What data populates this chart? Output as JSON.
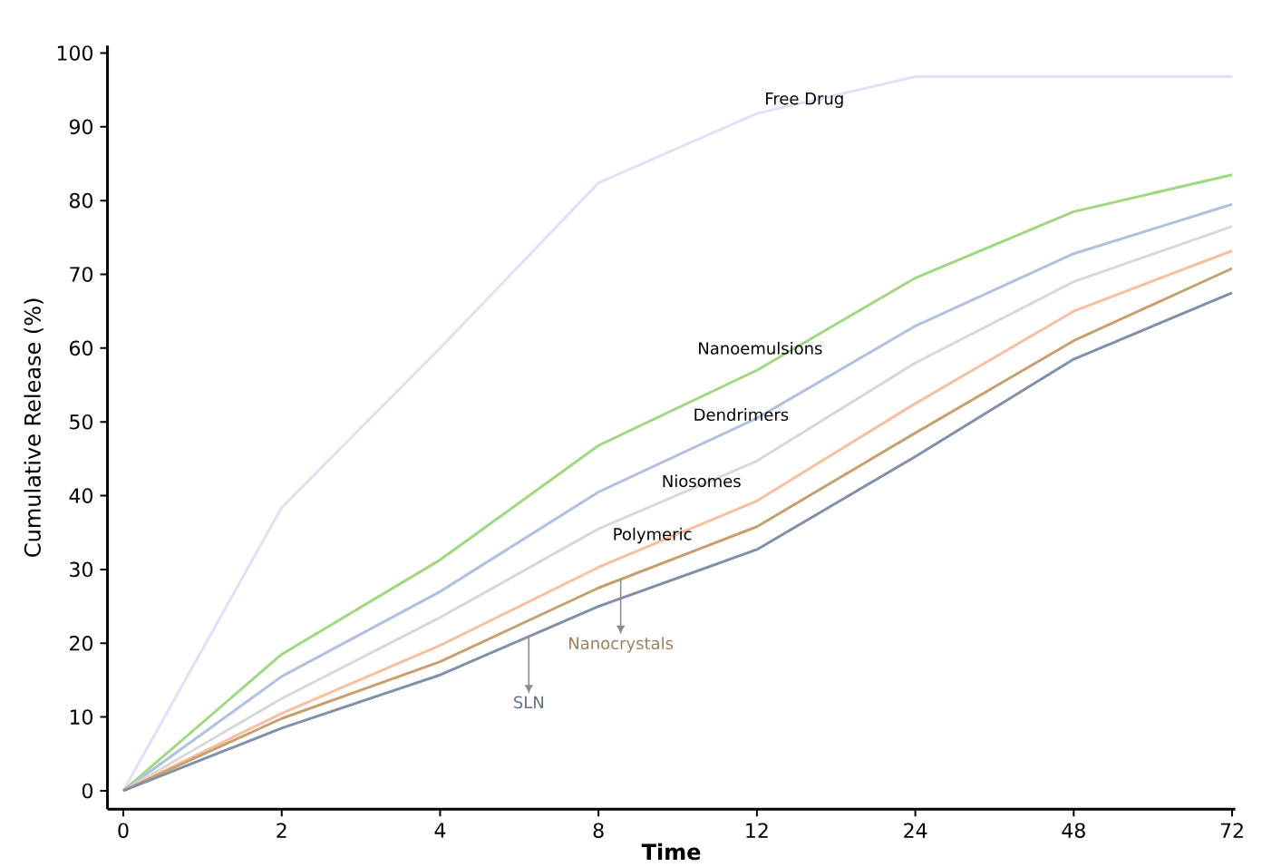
{
  "chart_data": {
    "type": "line",
    "xlabel": "Time",
    "ylabel": "Cumulative Release (%)",
    "categories": [
      "0",
      "2",
      "4",
      "8",
      "12",
      "24",
      "48",
      "72"
    ],
    "ylim": [
      -2.5,
      101
    ],
    "yticks": [
      0,
      10,
      20,
      30,
      40,
      50,
      60,
      70,
      80,
      90,
      100
    ],
    "grid": false,
    "legend": false,
    "marker": "none",
    "line_style": "solid",
    "series": [
      {
        "name": "Free Drug",
        "color": "#e0e0f8",
        "values": [
          0,
          38.4,
          60,
          82.4,
          91.8,
          96.8,
          96.8,
          96.8
        ]
      },
      {
        "name": "Nanoemulsions",
        "color": "#a0d880",
        "values": [
          0,
          18.5,
          31.3,
          46.8,
          57,
          69.5,
          78.5,
          83.5
        ]
      },
      {
        "name": "Dendrimers",
        "color": "#b0c0e0",
        "values": [
          0,
          15.5,
          27,
          40.5,
          50.5,
          63,
          72.8,
          79.5
        ]
      },
      {
        "name": "Niosomes",
        "color": "#d8d8d8",
        "values": [
          0,
          12.5,
          23.5,
          35.5,
          44.7,
          58,
          69,
          76.5
        ]
      },
      {
        "name": "Polymeric",
        "color": "#f8c0a0",
        "values": [
          0,
          10.5,
          19.7,
          30.3,
          39.3,
          52.5,
          65,
          73.2
        ]
      },
      {
        "name": "Nanocrystals",
        "color": "#c8a070",
        "values": [
          0,
          9.8,
          17.5,
          27.5,
          35.8,
          48.5,
          61,
          70.8
        ]
      },
      {
        "name": "SLN",
        "color": "#8090a8",
        "values": [
          0,
          8.5,
          15.7,
          25,
          32.7,
          45.3,
          58.5,
          67.5
        ]
      }
    ]
  }
}
